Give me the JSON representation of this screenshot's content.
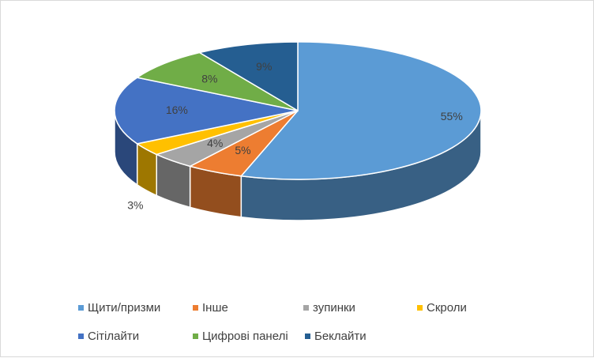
{
  "chart_data": {
    "type": "pie",
    "style": "3d-exploded-pie",
    "categories": [
      "Щити/призми",
      "Інше",
      "зупинки",
      "Скроли",
      "Сітілайти",
      "Цифрові панелі",
      "Беклайти"
    ],
    "values": [
      55,
      5,
      4,
      3,
      16,
      8,
      9
    ],
    "labels": [
      "55%",
      "5%",
      "4%",
      "3%",
      "16%",
      "8%",
      "9%"
    ],
    "colors": [
      "#5B9BD5",
      "#ED7D31",
      "#A5A5A5",
      "#FFC000",
      "#4472C4",
      "#70AD47",
      "#255E91"
    ],
    "legend_position": "bottom",
    "title": ""
  }
}
